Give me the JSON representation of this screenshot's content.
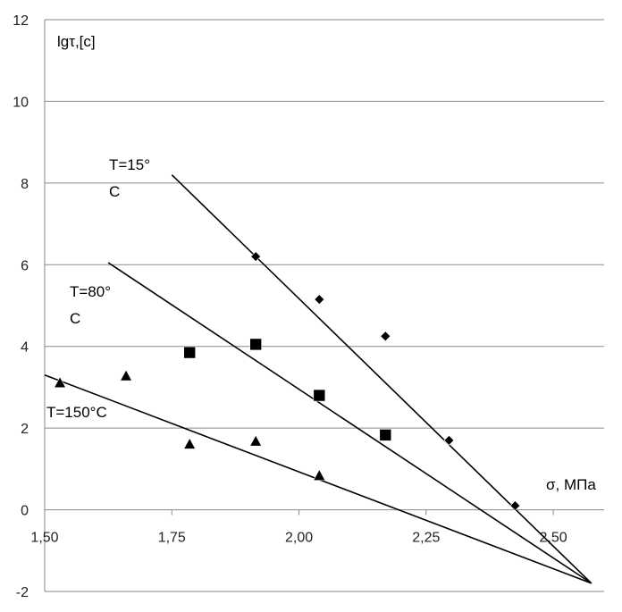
{
  "chart_data": {
    "type": "scatter",
    "xlabel": "σ, МПа",
    "ylabel": "lgτ,[c]",
    "xlim": [
      1.5,
      2.6
    ],
    "ylim": [
      -2,
      12
    ],
    "x_ticks": [
      "1,50",
      "1,75",
      "2,00",
      "2,25",
      "2,50"
    ],
    "y_ticks": [
      "-2",
      "0",
      "2",
      "4",
      "6",
      "8",
      "10",
      "12"
    ],
    "grid": "horizontal",
    "series": [
      {
        "name": "T=15°C",
        "label_lines": [
          "T=15°",
          "C"
        ],
        "marker": "diamond",
        "points": [
          [
            1.915,
            6.2
          ],
          [
            2.04,
            5.15
          ],
          [
            2.17,
            4.25
          ],
          [
            2.295,
            1.7
          ],
          [
            2.425,
            0.1
          ]
        ],
        "trend": [
          [
            1.75,
            8.2
          ],
          [
            2.575,
            -1.8
          ]
        ]
      },
      {
        "name": "T=80°C",
        "label_lines": [
          "T=80°",
          "C"
        ],
        "marker": "square",
        "points": [
          [
            1.785,
            3.85
          ],
          [
            1.915,
            4.05
          ],
          [
            2.04,
            2.8
          ],
          [
            2.17,
            1.83
          ]
        ],
        "trend": [
          [
            1.625,
            6.05
          ],
          [
            2.575,
            -1.8
          ]
        ]
      },
      {
        "name": "T=150°C",
        "label_lines": [
          "T=150°C"
        ],
        "marker": "triangle",
        "points": [
          [
            1.53,
            3.1
          ],
          [
            1.66,
            3.27
          ],
          [
            1.785,
            1.6
          ],
          [
            1.915,
            1.67
          ],
          [
            2.04,
            0.83
          ]
        ],
        "trend": [
          [
            1.5,
            3.3
          ],
          [
            2.575,
            -1.8
          ]
        ]
      }
    ]
  }
}
